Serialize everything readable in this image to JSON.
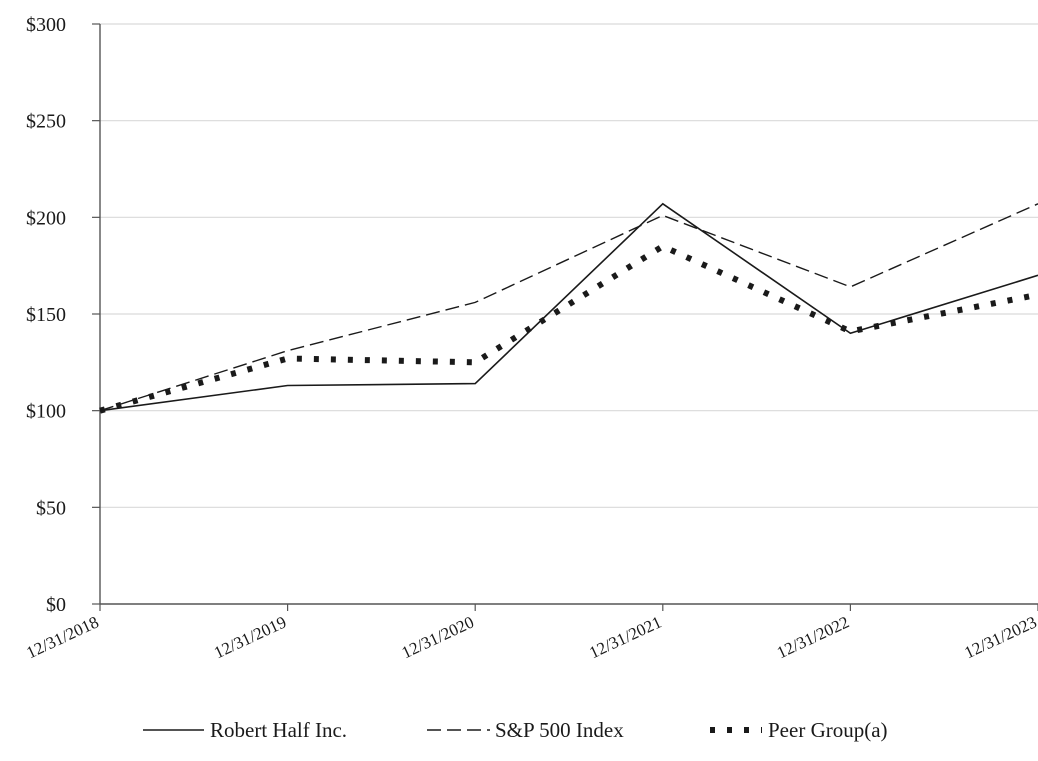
{
  "chart_data": {
    "type": "line",
    "title": "",
    "xlabel": "",
    "ylabel": "",
    "categories": [
      "12/31/2018",
      "12/31/2019",
      "12/31/2020",
      "12/31/2021",
      "12/31/2022",
      "12/31/2023"
    ],
    "y_ticks": [
      "$0",
      "$50",
      "$100",
      "$150",
      "$200",
      "$250",
      "$300"
    ],
    "ylim": [
      0,
      300
    ],
    "y_tick_step": 50,
    "grid": "horizontal",
    "legend_position": "bottom",
    "series": [
      {
        "name": "Robert Half Inc.",
        "values": [
          100,
          113,
          114,
          207,
          140,
          170
        ],
        "style": "solid",
        "color": "#1a1a1a"
      },
      {
        "name": "S&P 500 Index",
        "values": [
          100,
          131,
          156,
          201,
          164,
          207
        ],
        "style": "dashed",
        "color": "#1a1a1a"
      },
      {
        "name": "Peer Group(a)",
        "values": [
          100,
          127,
          125,
          185,
          141,
          160
        ],
        "style": "dotted",
        "color": "#1a1a1a"
      }
    ]
  }
}
